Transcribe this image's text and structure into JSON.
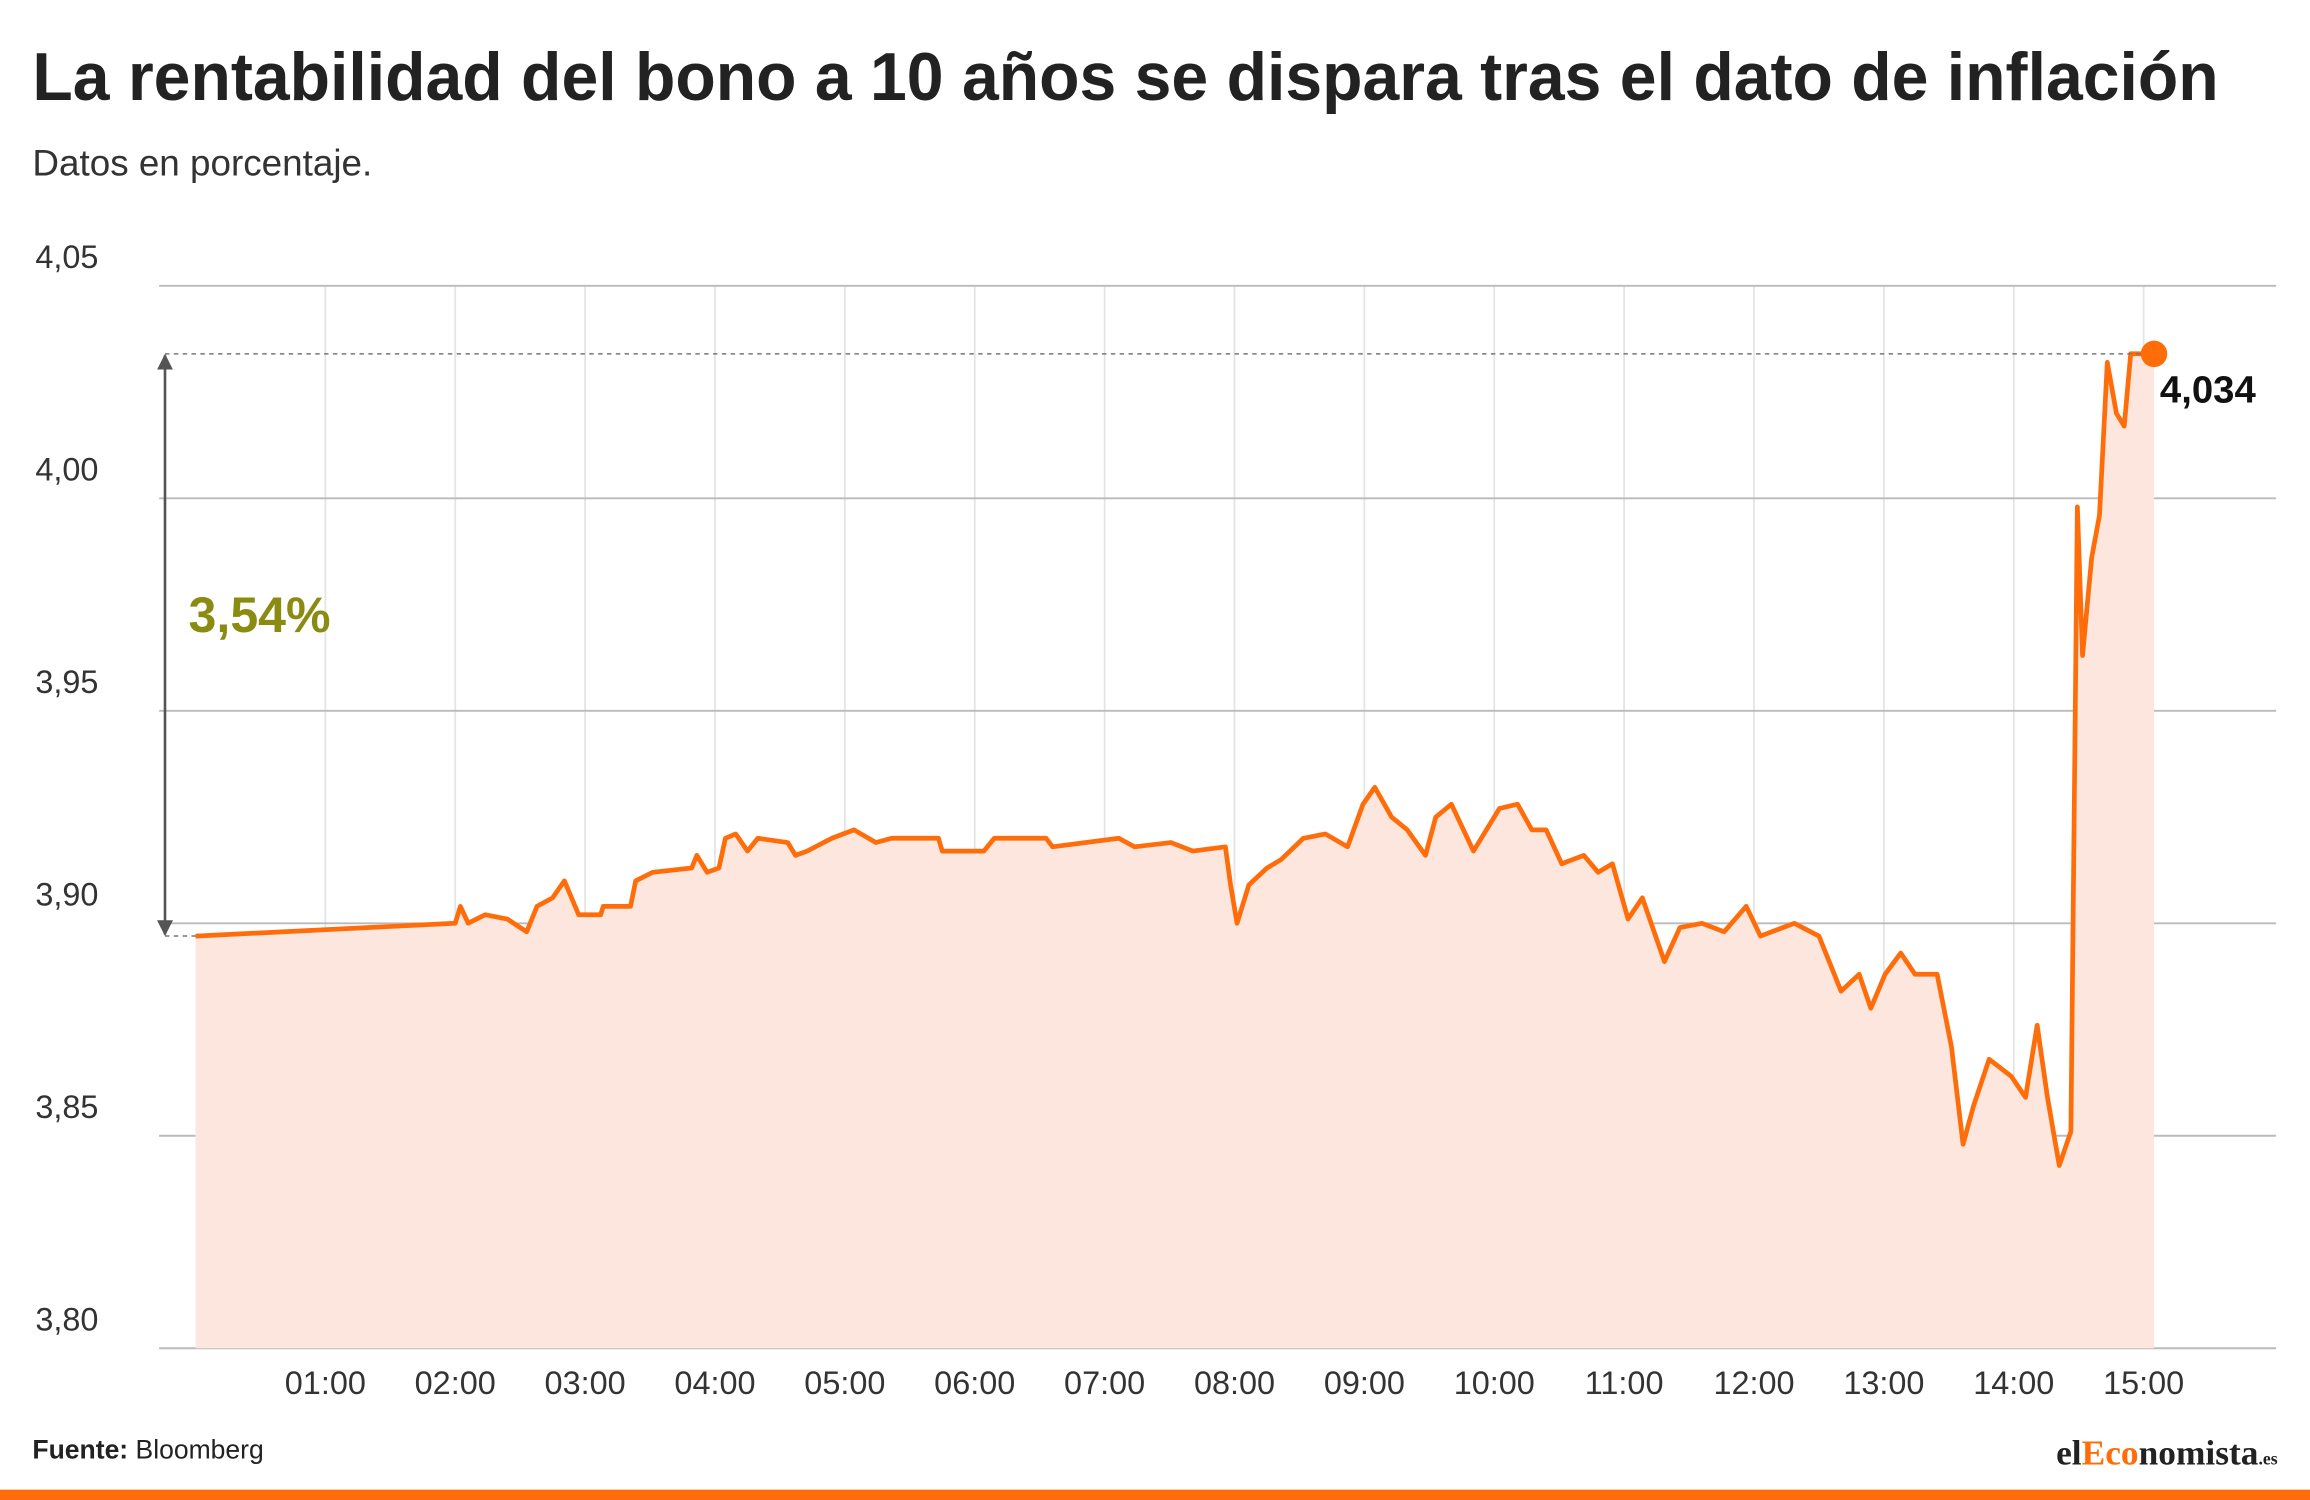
{
  "chart_data": {
    "type": "line",
    "title": "La rentabilidad del bono a 10 años se dispara tras el dato de inflación",
    "subtitle": "Datos en porcentaje.",
    "source_label": "Fuente:",
    "source": "Bloomberg",
    "logo": [
      "el",
      "Eco",
      "nomista",
      ".es"
    ],
    "annotations": [
      {
        "text": "3,54%"
      }
    ],
    "color": "#ff6d0a",
    "fill_color": "#fde6de",
    "annotation_color": "#8b8b12",
    "grid": true,
    "xlim": [
      -0.28,
      16.02
    ],
    "ylim": [
      3.8,
      4.05
    ],
    "xticks": [
      {
        "value": 1,
        "label": "01:00"
      },
      {
        "value": 2,
        "label": "02:00"
      },
      {
        "value": 3,
        "label": "03:00"
      },
      {
        "value": 4,
        "label": "04:00"
      },
      {
        "value": 5,
        "label": "05:00"
      },
      {
        "value": 6,
        "label": "06:00"
      },
      {
        "value": 7,
        "label": "07:00"
      },
      {
        "value": 8,
        "label": "08:00"
      },
      {
        "value": 9,
        "label": "09:00"
      },
      {
        "value": 10,
        "label": "10:00"
      },
      {
        "value": 11,
        "label": "11:00"
      },
      {
        "value": 12,
        "label": "12:00"
      },
      {
        "value": 13,
        "label": "13:00"
      },
      {
        "value": 14,
        "label": "14:00"
      },
      {
        "value": 15,
        "label": "15:00"
      }
    ],
    "yticks": [
      {
        "value": 3.8,
        "label": "3,80"
      },
      {
        "value": 3.85,
        "label": "3,85"
      },
      {
        "value": 3.9,
        "label": "3,90"
      },
      {
        "value": 3.95,
        "label": "3,95"
      },
      {
        "value": 4.0,
        "label": "4,00"
      },
      {
        "value": 4.05,
        "label": "4,05"
      }
    ],
    "x": [
      0,
      2.0,
      2.04,
      2.1,
      2.23,
      2.4,
      2.55,
      2.63,
      2.75,
      2.84,
      2.95,
      3.12,
      3.14,
      3.35,
      3.39,
      3.52,
      3.82,
      3.86,
      3.94,
      4.03,
      4.08,
      4.16,
      4.25,
      4.33,
      4.56,
      4.62,
      4.71,
      4.9,
      5.07,
      5.24,
      5.36,
      5.72,
      5.75,
      6.07,
      6.15,
      6.55,
      6.6,
      7.11,
      7.23,
      7.51,
      7.68,
      7.93,
      7.97,
      8.02,
      8.11,
      8.25,
      8.36,
      8.53,
      8.7,
      8.87,
      8.99,
      9.08,
      9.21,
      9.33,
      9.47,
      9.55,
      9.67,
      9.84,
      10.04,
      10.18,
      10.29,
      10.4,
      10.52,
      10.69,
      10.8,
      10.91,
      11.03,
      11.14,
      11.31,
      11.43,
      11.6,
      11.77,
      11.94,
      12.05,
      12.31,
      12.5,
      12.67,
      12.81,
      12.9,
      13.01,
      13.13,
      13.24,
      13.41,
      13.52,
      13.61,
      13.69,
      13.81,
      13.98,
      14.09,
      14.18,
      14.26,
      14.35,
      14.44,
      14.49,
      14.53,
      14.6,
      14.66,
      14.72,
      14.79,
      14.85,
      14.9,
      15.08
    ],
    "values": [
      3.897,
      3.9,
      3.904,
      3.9,
      3.902,
      3.901,
      3.898,
      3.904,
      3.906,
      3.91,
      3.902,
      3.902,
      3.904,
      3.904,
      3.91,
      3.912,
      3.913,
      3.916,
      3.912,
      3.913,
      3.92,
      3.921,
      3.917,
      3.92,
      3.919,
      3.916,
      3.917,
      3.92,
      3.922,
      3.919,
      3.92,
      3.92,
      3.917,
      3.917,
      3.92,
      3.92,
      3.918,
      3.92,
      3.918,
      3.919,
      3.917,
      3.918,
      3.909,
      3.9,
      3.909,
      3.913,
      3.915,
      3.92,
      3.921,
      3.918,
      3.928,
      3.932,
      3.925,
      3.922,
      3.916,
      3.925,
      3.928,
      3.917,
      3.927,
      3.928,
      3.922,
      3.922,
      3.914,
      3.916,
      3.912,
      3.914,
      3.901,
      3.906,
      3.891,
      3.899,
      3.9,
      3.898,
      3.904,
      3.897,
      3.9,
      3.897,
      3.884,
      3.888,
      3.88,
      3.888,
      3.893,
      3.888,
      3.888,
      3.871,
      3.848,
      3.857,
      3.868,
      3.864,
      3.859,
      3.876,
      3.859,
      3.843,
      3.851,
      3.998,
      3.963,
      3.986,
      3.996,
      4.032,
      4.02,
      4.017,
      4.034,
      4.034
    ],
    "value_labels": [
      null,
      null,
      null,
      null,
      null,
      null,
      null,
      null,
      null,
      null,
      null,
      null,
      null,
      null,
      null,
      null,
      null,
      null,
      null,
      null,
      null,
      null,
      null,
      null,
      null,
      null,
      null,
      null,
      null,
      null,
      null,
      null,
      null,
      null,
      null,
      null,
      null,
      null,
      null,
      null,
      null,
      null,
      null,
      null,
      null,
      null,
      null,
      null,
      null,
      null,
      null,
      null,
      null,
      null,
      null,
      null,
      null,
      null,
      null,
      null,
      null,
      null,
      null,
      null,
      null,
      null,
      null,
      null,
      null,
      null,
      null,
      null,
      null,
      null,
      null,
      null,
      null,
      null,
      null,
      null,
      null,
      null,
      null,
      null,
      null,
      null,
      null,
      null,
      null,
      null,
      null,
      null,
      null,
      null,
      null,
      null,
      null,
      null,
      null,
      null,
      null,
      "4,034"
    ]
  }
}
